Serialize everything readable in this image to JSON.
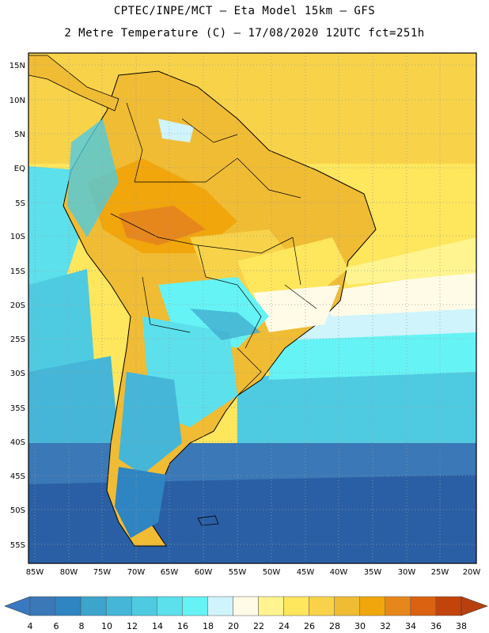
{
  "header": {
    "line1": "CPTEC/INPE/MCT –  Eta Model 15km – GFS",
    "line2": "2 Metre Temperature (C) – 17/08/2020 12UTC fct=251h"
  },
  "map": {
    "lat_labels": [
      "15N",
      "10N",
      "5N",
      "EQ",
      "5S",
      "10S",
      "15S",
      "20S",
      "25S",
      "30S",
      "35S",
      "40S",
      "45S",
      "50S",
      "55S"
    ],
    "lon_labels": [
      "85W",
      "80W",
      "75W",
      "70W",
      "65W",
      "60W",
      "55W",
      "50W",
      "45W",
      "40W",
      "35W",
      "30W",
      "25W",
      "20W"
    ]
  },
  "colorbar": {
    "labels": [
      "4",
      "6",
      "8",
      "10",
      "12",
      "14",
      "16",
      "18",
      "20",
      "22",
      "24",
      "26",
      "28",
      "30",
      "32",
      "34",
      "36",
      "38"
    ],
    "colors": [
      "#3a78b7",
      "#2f84c2",
      "#3da4cc",
      "#45b6d8",
      "#4fcbe1",
      "#5ce0ec",
      "#66f3f5",
      "#cff4fb",
      "#fffbe6",
      "#fff48f",
      "#fee65d",
      "#f8d34a",
      "#f0bc34",
      "#f1a60c",
      "#e6871c",
      "#da6210",
      "#c2440b"
    ],
    "low_arrow_color": "#3b78c2",
    "high_arrow_color": "#b8400f"
  },
  "palette": {
    "frame": "#000000",
    "grid": "#9a9a9a",
    "cold_ocean": "#2a5fa5"
  }
}
